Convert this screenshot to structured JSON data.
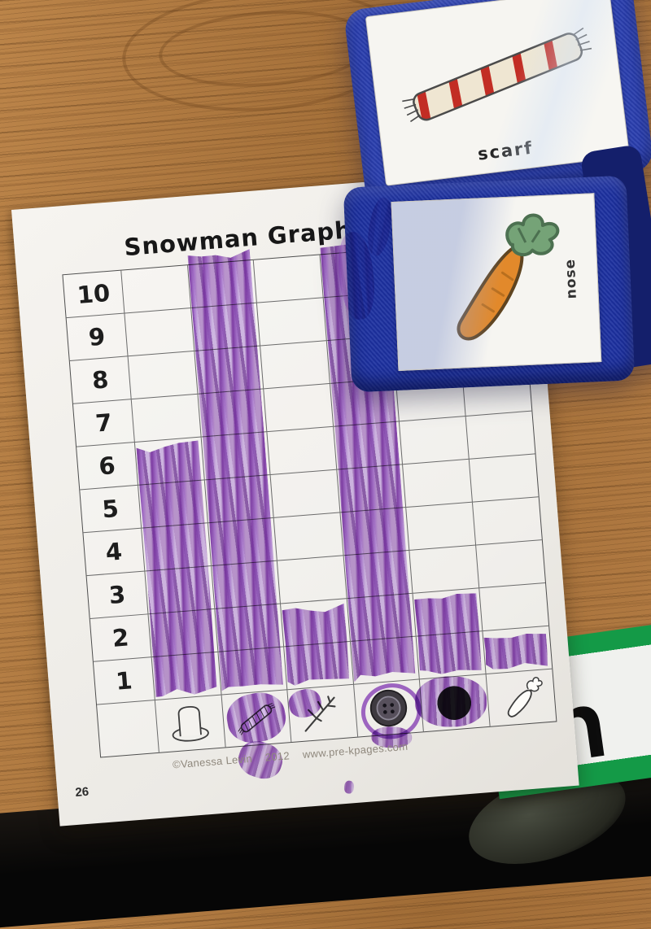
{
  "worksheet": {
    "title": "Snowman Graph",
    "row_labels": [
      "10",
      "9",
      "8",
      "7",
      "6",
      "5",
      "4",
      "3",
      "2",
      "1"
    ],
    "categories": [
      {
        "id": "hat",
        "label": "top hat"
      },
      {
        "id": "scarf",
        "label": "scarf"
      },
      {
        "id": "stick",
        "label": "stick"
      },
      {
        "id": "button",
        "label": "button"
      },
      {
        "id": "coal",
        "label": "coal"
      },
      {
        "id": "carrot",
        "label": "carrot"
      }
    ],
    "footer": {
      "copyright": "©Vanessa Levin",
      "year": "2012",
      "website": "www.pre-kpages.com"
    },
    "page_number": "26"
  },
  "chart_data": {
    "type": "bar",
    "title": "Snowman Graph",
    "categories": [
      "top hat",
      "scarf",
      "stick",
      "button",
      "coal",
      "carrot"
    ],
    "values": [
      6,
      10,
      2,
      10,
      2,
      1
    ],
    "ylim": [
      0,
      10
    ],
    "ytick_labels": [
      "10",
      "9",
      "8",
      "7",
      "6",
      "5",
      "4",
      "3",
      "2",
      "1"
    ],
    "orientation": "vertical",
    "legend": "none",
    "note": "Hand-colored purple marker columns on a 6x10 graphing grid; scarf and button columns are filled to 10 with strokes overflowing above the top gridline; marker also scribbles over the scarf, stick, button and coal picture cells."
  },
  "dice": {
    "top_card": {
      "label": "scarf",
      "picture": "red-and-white striped scarf"
    },
    "front_card": {
      "label": "nose",
      "picture": "carrot",
      "label_rotation_deg": -90
    }
  },
  "sign": {
    "visible_letter": "n"
  },
  "colors": {
    "marker_purple": "#8e44c9",
    "cube_blue": "#2b40b0",
    "scarf_red": "#c22d24",
    "scarf_cream": "#efe6d2",
    "carrot_orange": "#e2892b",
    "leaf_green": "#75a377",
    "sign_green": "#149a47",
    "desk_wood": "#ad7741",
    "coal_black": "#1b1b1d"
  }
}
